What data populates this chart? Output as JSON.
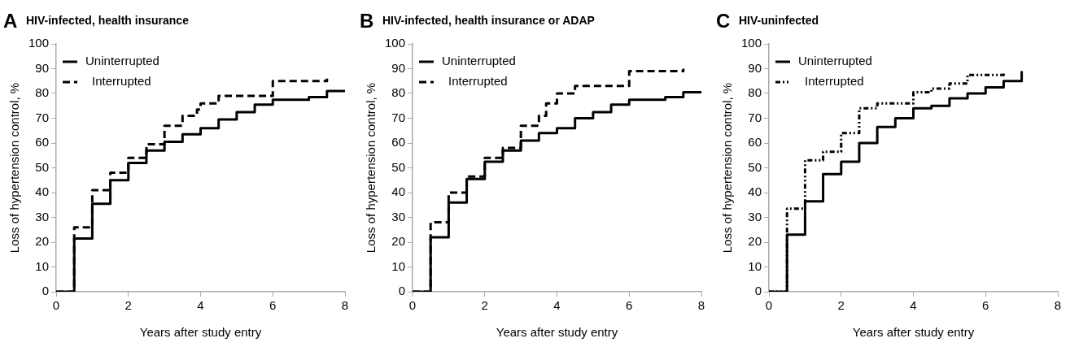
{
  "chart_data": [
    {
      "type": "step",
      "title": "HIV-infected, health insurance",
      "annotations": [
        "A"
      ],
      "xlabel": "Years after study entry",
      "ylabel": "Loss of hypertension control, %",
      "xlim": [
        0,
        8
      ],
      "xticks": [
        0,
        2,
        4,
        6,
        8
      ],
      "ylim": [
        0,
        100
      ],
      "yticks": [
        0,
        10,
        20,
        30,
        40,
        50,
        60,
        70,
        80,
        90,
        100
      ],
      "grid": false,
      "legend": "top left",
      "marker": "none",
      "series": [
        {
          "name": "Uninterrupted",
          "color": "#000000",
          "line_style": "solid",
          "x": [
            0,
            0.5,
            1,
            1.5,
            2,
            2.5,
            3,
            3.5,
            4,
            4.5,
            5,
            5.5,
            6,
            7,
            7.5,
            8
          ],
          "values": [
            0,
            21.5,
            35.5,
            45,
            52,
            57,
            60.5,
            63.5,
            66,
            69.5,
            72.5,
            75.5,
            77.5,
            78.5,
            81,
            81
          ]
        },
        {
          "name": "Interrupted",
          "color": "#000000",
          "line_style": "dashed",
          "x": [
            0,
            0.5,
            1,
            1.5,
            2,
            2.5,
            3,
            3.5,
            3.9,
            4,
            4.5,
            6,
            7.5
          ],
          "values": [
            0,
            26,
            41,
            48,
            54,
            59.5,
            67,
            71,
            73.5,
            76,
            79,
            85,
            86
          ]
        }
      ]
    },
    {
      "type": "step",
      "title": "HIV-infected, health insurance or ADAP",
      "annotations": [
        "B"
      ],
      "xlabel": "Years after study entry",
      "ylabel": "Loss of hypertension control, %",
      "xlim": [
        0,
        8
      ],
      "xticks": [
        0,
        2,
        4,
        6,
        8
      ],
      "ylim": [
        0,
        100
      ],
      "yticks": [
        0,
        10,
        20,
        30,
        40,
        50,
        60,
        70,
        80,
        90,
        100
      ],
      "grid": false,
      "legend": "top left",
      "marker": "none",
      "series": [
        {
          "name": "Uninterrupted",
          "color": "#000000",
          "line_style": "solid",
          "x": [
            0,
            0.5,
            1,
            1.5,
            2,
            2.5,
            3,
            3.5,
            4,
            4.5,
            5,
            5.5,
            6,
            7,
            7.5,
            8
          ],
          "values": [
            0,
            22,
            36,
            45.5,
            52.5,
            57,
            61,
            64,
            66,
            70,
            72.5,
            75.5,
            77.5,
            78.5,
            80.5,
            80.5
          ]
        },
        {
          "name": "Interrupted",
          "color": "#000000",
          "line_style": "dashed",
          "x": [
            0,
            0.5,
            1,
            1.5,
            2,
            2.5,
            3,
            3.5,
            3.7,
            4,
            4.5,
            6,
            7.5
          ],
          "values": [
            0,
            28,
            40,
            46.5,
            54,
            58,
            67,
            71,
            76,
            80,
            83,
            89,
            90
          ]
        }
      ]
    },
    {
      "type": "step",
      "title": "HIV-uninfected",
      "annotations": [
        "C"
      ],
      "xlabel": "Years after study entry",
      "ylabel": "Loss of hypertension control, %",
      "xlim": [
        0,
        8
      ],
      "xticks": [
        0,
        2,
        4,
        6,
        8
      ],
      "ylim": [
        0,
        100
      ],
      "yticks": [
        0,
        10,
        20,
        30,
        40,
        50,
        60,
        70,
        80,
        90,
        100
      ],
      "grid": false,
      "legend": "top left",
      "marker": "none",
      "series": [
        {
          "name": "Uninterrupted",
          "color": "#000000",
          "line_style": "solid",
          "x": [
            0,
            0.5,
            1,
            1.5,
            2,
            2.5,
            3,
            3.5,
            4,
            4.5,
            5,
            5.5,
            6,
            6.5,
            7
          ],
          "values": [
            0,
            23,
            36.5,
            47.5,
            52.5,
            60,
            66.5,
            70,
            74,
            75,
            78,
            80,
            82.5,
            85,
            89
          ]
        },
        {
          "name": "Interrupted",
          "color": "#000000",
          "line_style": "dotted",
          "x": [
            0,
            0.5,
            1,
            1.5,
            2,
            2.5,
            3,
            4,
            4.5,
            5,
            5.5,
            6.5
          ],
          "values": [
            0,
            33.5,
            53,
            56.5,
            64,
            74,
            76,
            80.5,
            82,
            84,
            87.5,
            88.5
          ]
        }
      ]
    }
  ]
}
